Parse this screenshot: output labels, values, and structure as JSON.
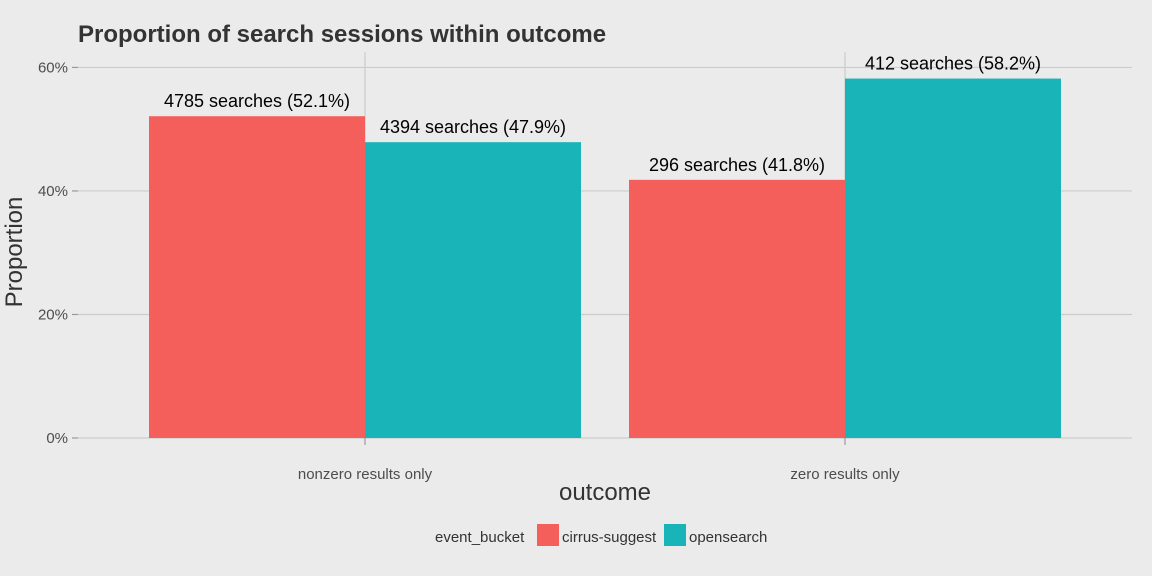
{
  "chart_data": {
    "type": "bar",
    "title": "Proportion of search sessions within outcome",
    "xlabel": "outcome",
    "ylabel": "Proportion",
    "categories": [
      "nonzero results only",
      "zero results only"
    ],
    "ylim": [
      0,
      0.625
    ],
    "yticks": [
      0,
      0.2,
      0.4,
      0.6
    ],
    "ytick_labels": [
      "0%",
      "20%",
      "40%",
      "60%"
    ],
    "grid": true,
    "legend_position": "bottom",
    "legend_title": "event_bucket",
    "series": [
      {
        "name": "cirrus-suggest",
        "color": "#F45E5B",
        "values": [
          0.521,
          0.418
        ],
        "labels": [
          "4785 searches (52.1%)",
          "296 searches (41.8%)"
        ]
      },
      {
        "name": "opensearch",
        "color": "#19B4B8",
        "values": [
          0.479,
          0.582
        ],
        "labels": [
          "4394 searches (47.9%)",
          "412 searches (58.2%)"
        ]
      }
    ]
  }
}
